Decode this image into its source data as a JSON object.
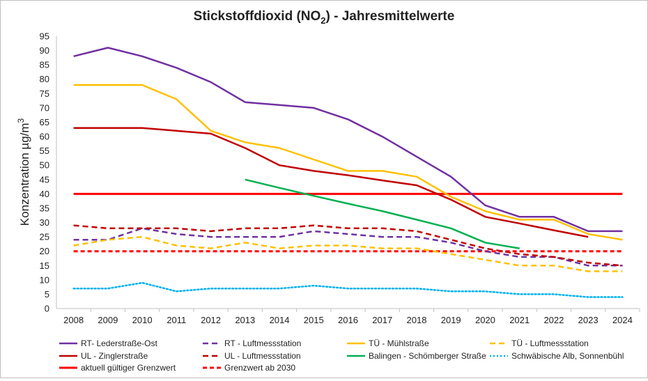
{
  "chart_data": {
    "type": "line",
    "title": "Stickstoffdioxid (NO",
    "title_sub": "2",
    "title_suffix": ") - Jahresmittelwerte",
    "ylabel": "Konzentration µg/m",
    "ylabel_sup": "3",
    "xlabel": "",
    "ylim": [
      0,
      95
    ],
    "yticks": [
      "0",
      "5",
      "10",
      "15",
      "20",
      "25",
      "30",
      "35",
      "40",
      "45",
      "50",
      "55",
      "60",
      "65",
      "70",
      "75",
      "80",
      "85",
      "90",
      "95"
    ],
    "categories": [
      "2008",
      "2009",
      "2010",
      "2011",
      "2012",
      "2013",
      "2014",
      "2015",
      "2016",
      "2017",
      "2018",
      "2019",
      "2020",
      "2021",
      "2022",
      "2023",
      "2024"
    ],
    "series": [
      {
        "name": "RT- Lederstraße-Ost",
        "color": "#7030a0",
        "style": "solid",
        "values": [
          88,
          91,
          88,
          84,
          79,
          72,
          71,
          70,
          66,
          60,
          53,
          46,
          36,
          32,
          32,
          27,
          27
        ]
      },
      {
        "name": "RT - Luftmessstation",
        "color": "#7030a0",
        "style": "dashed",
        "values": [
          24,
          24,
          28,
          26,
          25,
          25,
          25,
          27,
          26,
          25,
          25,
          23,
          20,
          18,
          18,
          15,
          15
        ]
      },
      {
        "name": "TÜ - Mühlstraße",
        "color": "#ffc000",
        "style": "solid",
        "values": [
          78,
          78,
          78,
          73,
          62,
          58,
          56,
          52,
          48,
          48,
          46,
          39,
          34,
          31,
          31,
          26,
          24
        ]
      },
      {
        "name": "TÜ - Luftmessstation",
        "color": "#ffc000",
        "style": "dashed",
        "values": [
          22,
          24,
          25,
          22,
          21,
          23,
          21,
          22,
          22,
          21,
          21,
          19,
          17,
          15,
          15,
          13,
          13
        ]
      },
      {
        "name": "UL - Zinglerstraße",
        "color": "#c00000",
        "style": "solid",
        "values": [
          63,
          63,
          63,
          62,
          61,
          56,
          50,
          48,
          46.5,
          44.7,
          43,
          38,
          32,
          29.7,
          27.3,
          25,
          null
        ]
      },
      {
        "name": "UL - Luftmessstation",
        "color": "#c00000",
        "style": "dashed",
        "values": [
          29,
          28,
          28,
          28,
          27,
          28,
          28,
          29,
          28,
          28,
          27,
          24,
          21,
          19,
          18,
          16,
          15
        ]
      },
      {
        "name": "Balingen - Schömberger Straße",
        "color": "#00b050",
        "style": "solid",
        "values": [
          null,
          null,
          null,
          null,
          null,
          45,
          42.1,
          39.3,
          36.6,
          34,
          31,
          28,
          23,
          21,
          null,
          null,
          null
        ]
      },
      {
        "name": "Schwäbische Alb, Sonnenbühl",
        "color": "#00b0f0",
        "style": "dotted",
        "values": [
          7,
          7,
          9,
          6,
          7,
          7,
          7,
          8,
          7,
          7,
          7,
          6,
          6,
          5,
          5,
          4,
          4
        ]
      },
      {
        "name": "aktuell gültiger Grenzwert",
        "color": "#ff0000",
        "style": "solid-thick",
        "values": [
          40,
          40,
          40,
          40,
          40,
          40,
          40,
          40,
          40,
          40,
          40,
          40,
          40,
          40,
          40,
          40,
          40
        ]
      },
      {
        "name": "Grenzwert ab 2030",
        "color": "#ff0000",
        "style": "dashed-thick",
        "values": [
          20,
          20,
          20,
          20,
          20,
          20,
          20,
          20,
          20,
          20,
          20,
          20,
          20,
          20,
          20,
          20,
          20
        ]
      }
    ],
    "legend": "bottom",
    "grid": false
  }
}
